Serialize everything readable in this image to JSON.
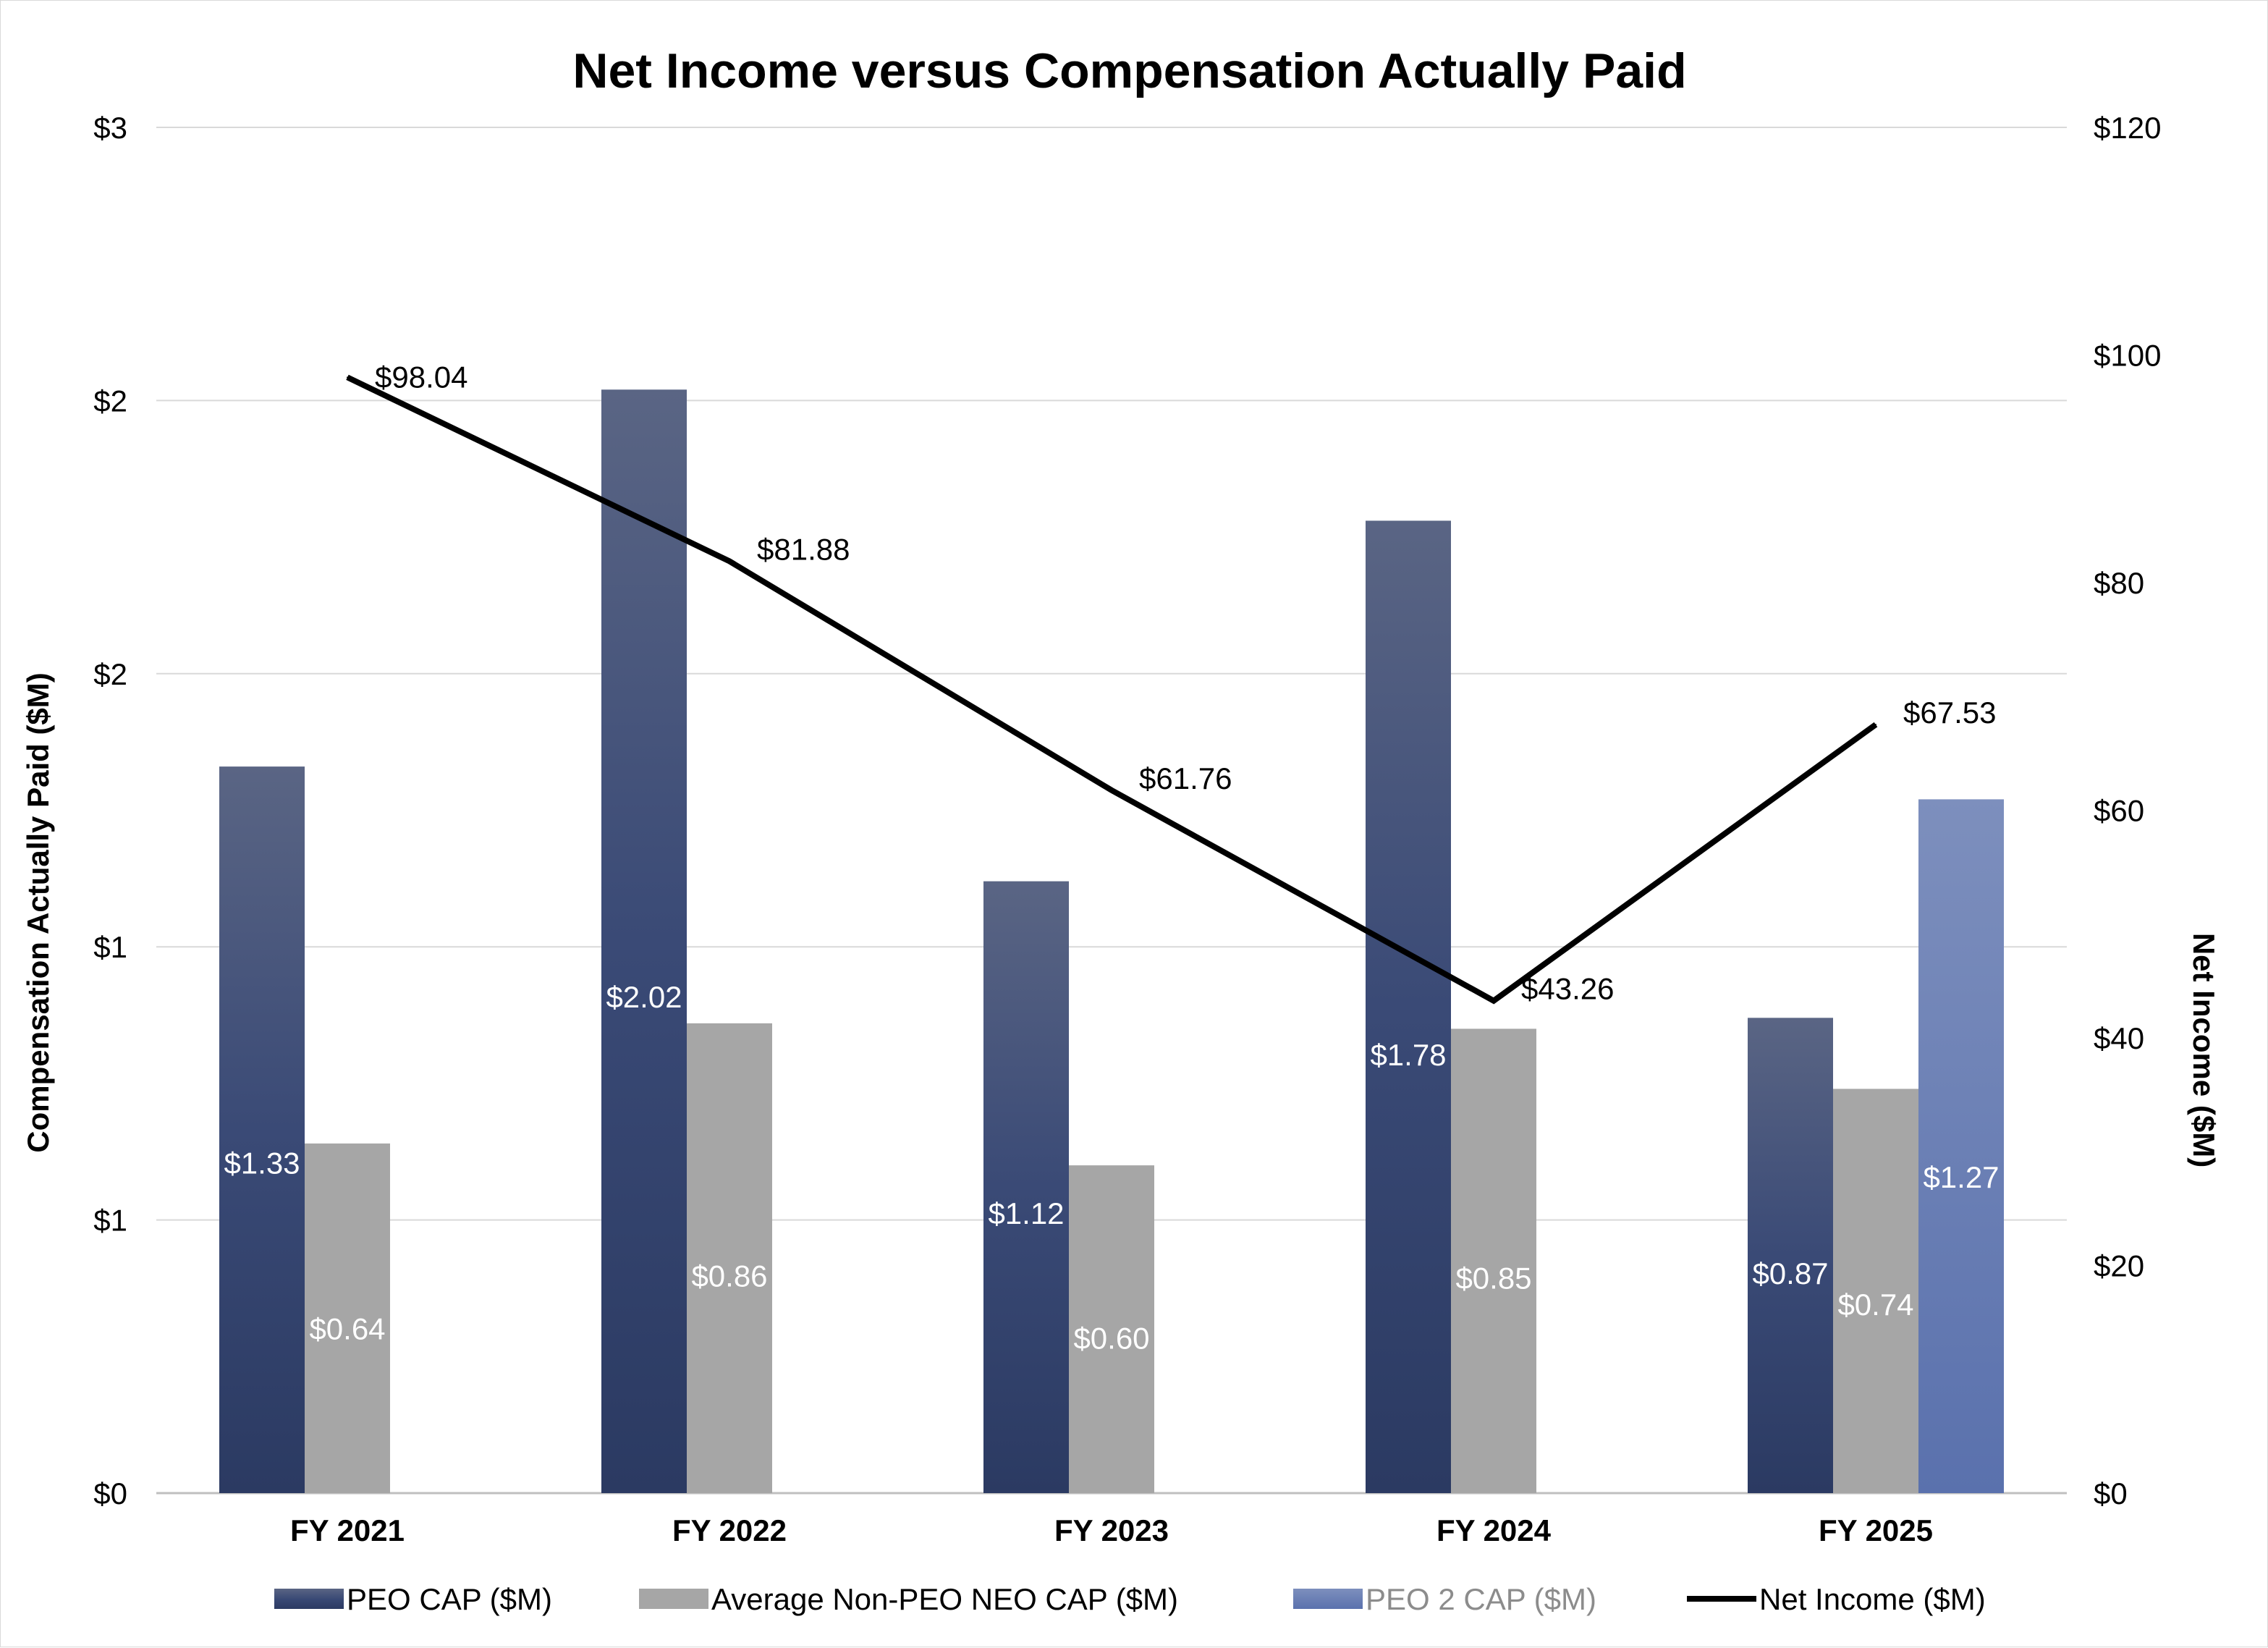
{
  "chart_data": {
    "type": "bar",
    "title": "Net Income versus Compensation Actually Paid",
    "categories": [
      "FY 2021",
      "FY 2022",
      "FY 2023",
      "FY 2024",
      "FY 2025"
    ],
    "ylabel": "Compensation Actually Paid ($M)",
    "y2label": "Net Income ($M)",
    "ylim": [
      0,
      2.5
    ],
    "y_tick_values": [
      0,
      0.5,
      1,
      1.5,
      2,
      2.5
    ],
    "y_tick_labels": [
      "$0",
      "$1",
      "$1",
      "$2",
      "$2",
      "$3"
    ],
    "y2lim": [
      0,
      120
    ],
    "y2_tick_values": [
      0,
      20,
      40,
      60,
      80,
      100,
      120
    ],
    "y2_tick_labels": [
      "$0",
      "$20",
      "$40",
      "$60",
      "$80",
      "$100",
      "$120"
    ],
    "grid": true,
    "legend_position": "bottom",
    "series": [
      {
        "name": "PEO CAP ($M)",
        "type": "bar",
        "axis": "left",
        "color": "#2e3c62",
        "values": [
          1.33,
          2.02,
          1.12,
          1.78,
          0.87
        ],
        "labels": [
          "$1.33",
          "$2.02",
          "$1.12",
          "$1.78",
          "$0.87"
        ]
      },
      {
        "name": "Average Non-PEO NEO CAP ($M)",
        "type": "bar",
        "axis": "left",
        "color": "#a6a6a6",
        "values": [
          0.64,
          0.86,
          0.6,
          0.85,
          0.74
        ],
        "labels": [
          "$0.64",
          "$0.86",
          "$0.60",
          "$0.85",
          "$0.74"
        ]
      },
      {
        "name": "PEO 2 CAP ($M)",
        "type": "bar",
        "axis": "left",
        "color": "#5f76b1",
        "values": [
          null,
          null,
          null,
          null,
          1.27
        ],
        "labels": [
          "",
          "",
          "",
          "",
          "$1.27"
        ]
      },
      {
        "name": "Net Income ($M)",
        "type": "line",
        "axis": "right",
        "color": "#000000",
        "values": [
          98.04,
          81.88,
          61.76,
          43.26,
          67.53
        ],
        "labels": [
          "$98.04",
          "$81.88",
          "$61.76",
          "$43.26",
          "$67.53"
        ]
      }
    ]
  }
}
